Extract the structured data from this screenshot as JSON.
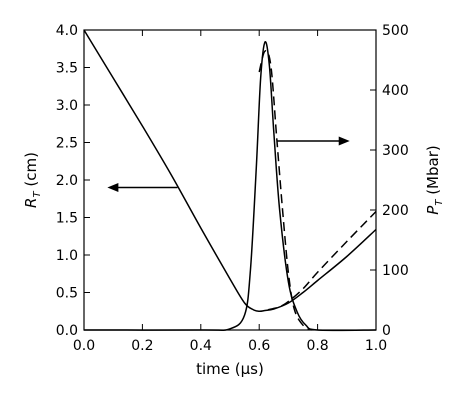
{
  "chart_data": {
    "type": "line",
    "xlabel": "time (μs)",
    "ylabel_left": {
      "main": "R",
      "sub": "T",
      "unit": " (cm)"
    },
    "ylabel_right": {
      "main": "P",
      "sub": "T",
      "unit": " (Mbar)"
    },
    "xlim": [
      0.0,
      1.0
    ],
    "ylim_left": [
      0.0,
      4.0
    ],
    "ylim_right": [
      0,
      500
    ],
    "xticks": [
      "0.0",
      "0.2",
      "0.4",
      "0.6",
      "0.8",
      "1.0"
    ],
    "yticks_left": [
      "0.0",
      "0.5",
      "1.0",
      "1.5",
      "2.0",
      "2.5",
      "3.0",
      "3.5",
      "4.0"
    ],
    "yticks_right": [
      "0",
      "100",
      "200",
      "300",
      "400",
      "500"
    ],
    "series": [
      {
        "axis": "left",
        "style": "solid",
        "points": [
          [
            0.0,
            4.0
          ],
          [
            0.1,
            3.36
          ],
          [
            0.2,
            2.72
          ],
          [
            0.3,
            2.06
          ],
          [
            0.4,
            1.36
          ],
          [
            0.5,
            0.68
          ],
          [
            0.55,
            0.36
          ],
          [
            0.58,
            0.27
          ],
          [
            0.6,
            0.25
          ],
          [
            0.62,
            0.26
          ],
          [
            0.65,
            0.28
          ],
          [
            0.7,
            0.36
          ],
          [
            0.75,
            0.5
          ],
          [
            0.8,
            0.66
          ],
          [
            0.9,
            0.98
          ],
          [
            1.0,
            1.34
          ]
        ]
      },
      {
        "axis": "left",
        "style": "dashed",
        "points": [
          [
            0.63,
            0.27
          ],
          [
            0.67,
            0.31
          ],
          [
            0.7,
            0.38
          ],
          [
            0.75,
            0.55
          ],
          [
            0.8,
            0.77
          ],
          [
            0.9,
            1.18
          ],
          [
            1.0,
            1.58
          ]
        ]
      },
      {
        "axis": "right",
        "style": "solid",
        "points": [
          [
            0.0,
            0
          ],
          [
            0.4,
            0
          ],
          [
            0.5,
            2
          ],
          [
            0.55,
            25
          ],
          [
            0.57,
            100
          ],
          [
            0.59,
            270
          ],
          [
            0.605,
            420
          ],
          [
            0.62,
            480
          ],
          [
            0.635,
            440
          ],
          [
            0.65,
            330
          ],
          [
            0.67,
            200
          ],
          [
            0.7,
            80
          ],
          [
            0.73,
            30
          ],
          [
            0.76,
            8
          ],
          [
            0.8,
            0
          ],
          [
            1.0,
            0
          ]
        ]
      },
      {
        "axis": "right",
        "style": "dashed",
        "points": [
          [
            0.6,
            430
          ],
          [
            0.62,
            465
          ],
          [
            0.64,
            440
          ],
          [
            0.66,
            320
          ],
          [
            0.68,
            200
          ],
          [
            0.7,
            95
          ],
          [
            0.72,
            35
          ],
          [
            0.75,
            8
          ],
          [
            0.78,
            0
          ]
        ]
      }
    ],
    "annotations": [
      {
        "type": "arrow",
        "from": [
          0.32,
          1.9
        ],
        "to": [
          0.08,
          1.9
        ],
        "axis": "left",
        "meaning": "R_T curve uses left axis"
      },
      {
        "type": "arrow",
        "from": [
          0.66,
          315
        ],
        "to": [
          0.91,
          315
        ],
        "axis": "right",
        "meaning": "P_T curve uses right axis"
      }
    ]
  }
}
